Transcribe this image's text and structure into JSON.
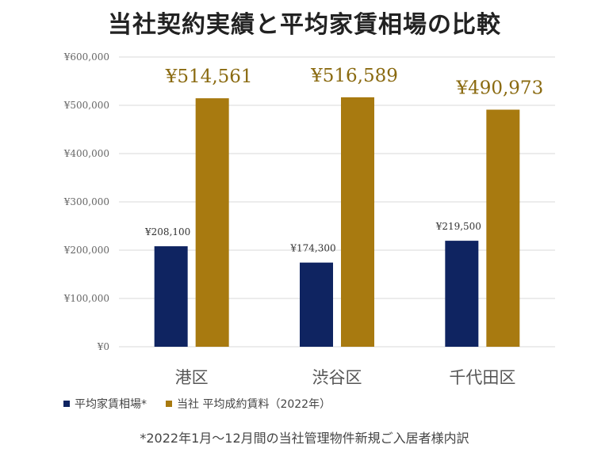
{
  "title": "当社契約実績と平均家賃相場の比較",
  "note": "*2022年1月～12月間の当社管理物件新規ご入居者様内訳",
  "colors": {
    "market": "#0f2461",
    "company": "#a87a10",
    "company_label": "#8a6a10",
    "grid": "#d9d9d9"
  },
  "chart_data": {
    "type": "bar",
    "categories": [
      "港区",
      "渋谷区",
      "千代田区"
    ],
    "series": [
      {
        "name": "平均家賃相場*",
        "values": [
          208100,
          174300,
          219500
        ],
        "labels": [
          "¥208,100",
          "¥174,300",
          "¥219,500"
        ]
      },
      {
        "name": "当社 平均成約賃料（2022年）",
        "values": [
          514561,
          516589,
          490973
        ],
        "labels": [
          "¥514,561",
          "¥516,589",
          "¥490,973"
        ]
      }
    ],
    "ylim": [
      0,
      600000
    ],
    "yticks": [
      0,
      100000,
      200000,
      300000,
      400000,
      500000,
      600000
    ],
    "ytick_labels": [
      "¥0",
      "¥100,000",
      "¥200,000",
      "¥300,000",
      "¥400,000",
      "¥500,000",
      "¥600,000"
    ],
    "grid": true,
    "legend": "bottom-left"
  }
}
